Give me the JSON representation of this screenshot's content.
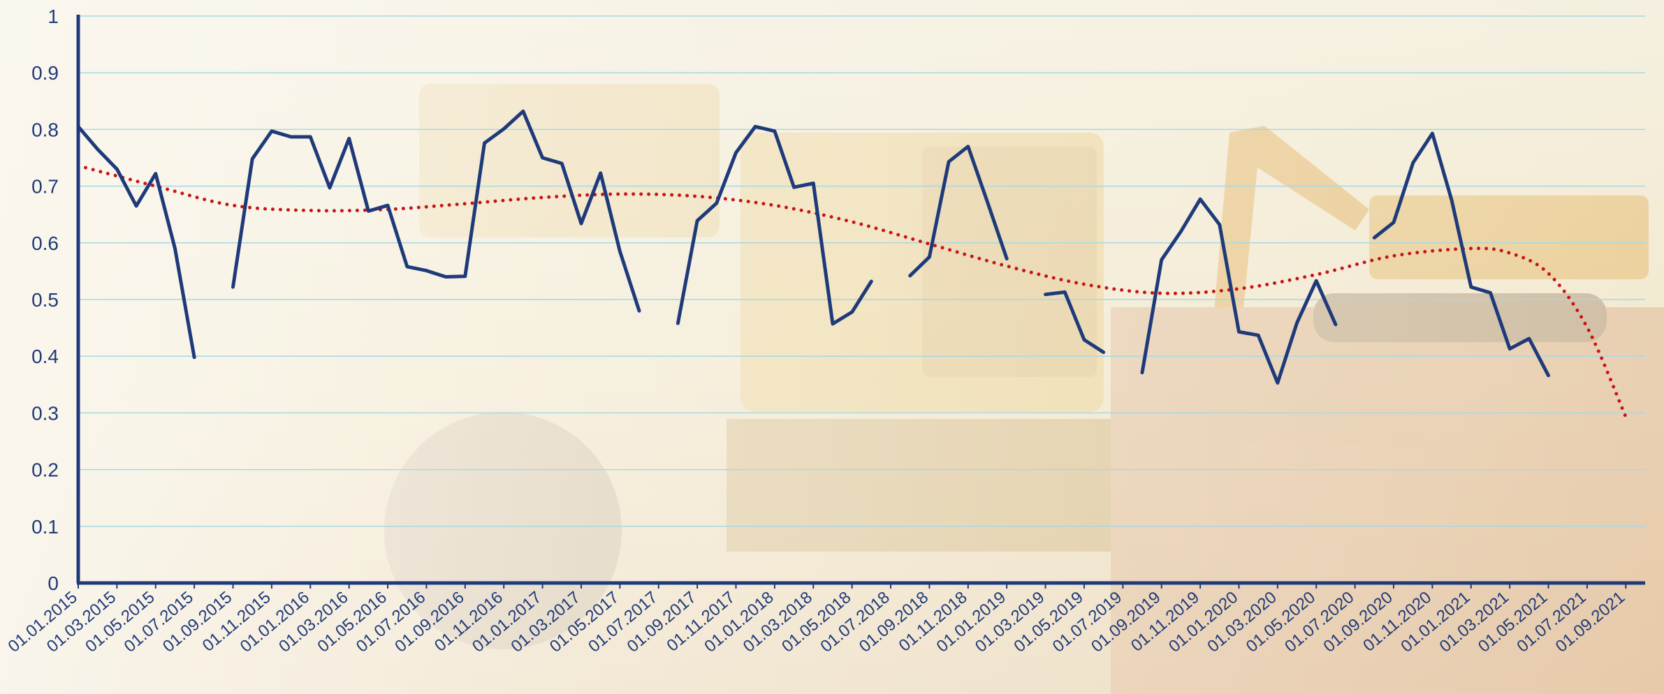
{
  "chart_data": {
    "type": "line",
    "title": "",
    "xlabel": "",
    "ylabel": "",
    "ylim": [
      0,
      1
    ],
    "yticks": [
      "0",
      "0.1",
      "0.2",
      "0.3",
      "0.4",
      "0.5",
      "0.6",
      "0.7",
      "0.8",
      "0.9",
      "1"
    ],
    "grid": true,
    "legend": "none",
    "x_start": "01.01.2015",
    "x_end": "01.10.2021",
    "x_tick_labels": [
      "01.01.2015",
      "01.03.2015",
      "01.05.2015",
      "01.07.2015",
      "01.09.2015",
      "01.11.2015",
      "01.01.2016",
      "01.03.2016",
      "01.05.2016",
      "01.07.2016",
      "01.09.2016",
      "01.11.2016",
      "01.01.2017",
      "01.03.2017",
      "01.05.2017",
      "01.07.2017",
      "01.09.2017",
      "01.11.2017",
      "01.01.2018",
      "01.03.2018",
      "01.05.2018",
      "01.07.2018",
      "01.09.2018",
      "01.11.2018",
      "01.01.2019",
      "01.03.2019",
      "01.05.2019",
      "01.07.2019",
      "01.09.2019",
      "01.11.2019",
      "01.01.2020",
      "01.03.2020",
      "01.05.2020",
      "01.07.2020",
      "01.09.2020",
      "01.11.2020",
      "01.01.2021",
      "01.03.2021",
      "01.05.2021",
      "01.07.2021",
      "01.09.2021"
    ],
    "series": [
      {
        "kind": "data",
        "color": "#1f3a7a",
        "segments": [
          [
            [
              "01.01.2015",
              0.805
            ],
            [
              "01.02.2015",
              0.765
            ],
            [
              "01.03.2015",
              0.73
            ],
            [
              "01.04.2015",
              0.665
            ],
            [
              "01.05.2015",
              0.722
            ],
            [
              "01.06.2015",
              0.59
            ],
            [
              "01.07.2015",
              0.398
            ]
          ],
          [
            [
              "01.09.2015",
              0.522
            ],
            [
              "01.10.2015",
              0.748
            ],
            [
              "01.11.2015",
              0.797
            ],
            [
              "01.12.2015",
              0.787
            ],
            [
              "01.01.2016",
              0.787
            ],
            [
              "01.02.2016",
              0.697
            ],
            [
              "01.03.2016",
              0.784
            ],
            [
              "01.04.2016",
              0.656
            ],
            [
              "01.05.2016",
              0.666
            ],
            [
              "01.06.2016",
              0.558
            ],
            [
              "01.07.2016",
              0.551
            ],
            [
              "01.08.2016",
              0.54
            ],
            [
              "01.09.2016",
              0.541
            ],
            [
              "01.10.2016",
              0.776
            ],
            [
              "01.11.2016",
              0.801
            ],
            [
              "01.12.2016",
              0.832
            ],
            [
              "01.01.2017",
              0.75
            ],
            [
              "01.02.2017",
              0.74
            ],
            [
              "01.03.2017",
              0.634
            ],
            [
              "01.04.2017",
              0.723
            ],
            [
              "01.05.2017",
              0.585
            ],
            [
              "01.06.2017",
              0.48
            ]
          ],
          [
            [
              "01.08.2017",
              0.458
            ],
            [
              "01.09.2017",
              0.639
            ],
            [
              "01.10.2017",
              0.67
            ],
            [
              "01.11.2017",
              0.759
            ],
            [
              "01.12.2017",
              0.805
            ],
            [
              "01.01.2018",
              0.797
            ],
            [
              "01.02.2018",
              0.698
            ],
            [
              "01.03.2018",
              0.705
            ],
            [
              "01.04.2018",
              0.457
            ],
            [
              "01.05.2018",
              0.478
            ],
            [
              "01.06.2018",
              0.532
            ]
          ],
          [
            [
              "01.08.2018",
              0.542
            ],
            [
              "01.09.2018",
              0.575
            ],
            [
              "01.10.2018",
              0.743
            ],
            [
              "01.11.2018",
              0.77
            ],
            [
              "01.12.2018",
              0.672
            ],
            [
              "01.01.2019",
              0.572
            ]
          ],
          [
            [
              "01.03.2019",
              0.509
            ],
            [
              "01.04.2019",
              0.513
            ],
            [
              "01.05.2019",
              0.429
            ],
            [
              "01.06.2019",
              0.407
            ]
          ],
          [
            [
              "01.08.2019",
              0.371
            ],
            [
              "01.09.2019",
              0.57
            ],
            [
              "01.10.2019",
              0.62
            ],
            [
              "01.11.2019",
              0.677
            ],
            [
              "01.12.2019",
              0.632
            ],
            [
              "01.01.2020",
              0.443
            ],
            [
              "01.02.2020",
              0.437
            ],
            [
              "01.03.2020",
              0.353
            ],
            [
              "01.04.2020",
              0.459
            ],
            [
              "01.05.2020",
              0.533
            ],
            [
              "01.06.2020",
              0.456
            ]
          ],
          [
            [
              "01.08.2020",
              0.609
            ],
            [
              "01.09.2020",
              0.636
            ],
            [
              "01.10.2020",
              0.741
            ],
            [
              "01.11.2020",
              0.793
            ],
            [
              "01.12.2020",
              0.675
            ],
            [
              "01.01.2021",
              0.522
            ],
            [
              "01.02.2021",
              0.512
            ],
            [
              "01.03.2021",
              0.413
            ],
            [
              "01.04.2021",
              0.431
            ],
            [
              "01.05.2021",
              0.366
            ]
          ]
        ]
      },
      {
        "kind": "trendline",
        "color": "#c81414",
        "style": "dotted",
        "points": [
          [
            "01.01.2015",
            0.736
          ],
          [
            "01.05.2015",
            0.7
          ],
          [
            "01.09.2015",
            0.666
          ],
          [
            "01.01.2016",
            0.657
          ],
          [
            "01.05.2016",
            0.659
          ],
          [
            "01.09.2016",
            0.669
          ],
          [
            "01.01.2017",
            0.68
          ],
          [
            "01.05.2017",
            0.686
          ],
          [
            "01.09.2017",
            0.682
          ],
          [
            "01.01.2018",
            0.666
          ],
          [
            "01.05.2018",
            0.637
          ],
          [
            "01.09.2018",
            0.598
          ],
          [
            "01.01.2019",
            0.559
          ],
          [
            "01.05.2019",
            0.527
          ],
          [
            "01.09.2019",
            0.511
          ],
          [
            "01.01.2020",
            0.519
          ],
          [
            "01.05.2020",
            0.544
          ],
          [
            "01.09.2020",
            0.577
          ],
          [
            "01.01.2021",
            0.59
          ],
          [
            "01.03.2021",
            0.582
          ],
          [
            "01.05.2021",
            0.546
          ],
          [
            "01.07.2021",
            0.451
          ],
          [
            "01.09.2021",
            0.293
          ]
        ]
      }
    ]
  },
  "colors": {
    "axis": "#1f3a7a",
    "grid": "#a8d8e2",
    "tick_text": "#1f3a7a",
    "background": "#f4ecd8"
  }
}
